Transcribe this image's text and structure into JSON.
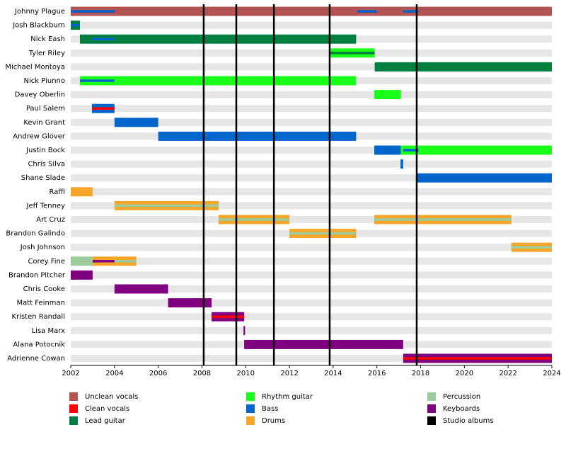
{
  "chart_data": {
    "type": "timeline",
    "xlim": [
      2002,
      2024
    ],
    "xticks": [
      2002,
      2004,
      2006,
      2008,
      2010,
      2012,
      2014,
      2016,
      2018,
      2020,
      2022,
      2024
    ],
    "legend": [
      {
        "name": "Unclean vocals",
        "color": "#b35454"
      },
      {
        "name": "Clean vocals",
        "color": "#ff0000"
      },
      {
        "name": "Lead guitar",
        "color": "#008040"
      },
      {
        "name": "Rhythm guitar",
        "color": "#1aff1a"
      },
      {
        "name": "Bass",
        "color": "#0066cc"
      },
      {
        "name": "Drums",
        "color": "#f5a52a"
      },
      {
        "name": "Percussion",
        "color": "#9ccc9c"
      },
      {
        "name": "Keyboards",
        "color": "#800080"
      },
      {
        "name": "Studio albums",
        "color": "#000000"
      }
    ],
    "albums": [
      2008.08,
      2009.57,
      2011.29,
      2013.84,
      2017.82
    ],
    "members": [
      {
        "name": "Johnny Plague",
        "bars": [
          {
            "role": "Unclean vocals",
            "start": 2002,
            "end": 2024
          },
          {
            "role": "Bass",
            "start": 2002,
            "end": 2004,
            "secondary": true
          },
          {
            "role": "Bass",
            "start": 2015.1,
            "end": 2016,
            "secondary": true
          },
          {
            "role": "Bass",
            "start": 2017.2,
            "end": 2017.9,
            "secondary": true
          }
        ]
      },
      {
        "name": "Josh Blackburn",
        "bars": [
          {
            "role": "Lead guitar",
            "start": 2002,
            "end": 2002.42
          },
          {
            "role": "Bass",
            "start": 2002,
            "end": 2002.42,
            "secondary": true
          }
        ]
      },
      {
        "name": "Nick Eash",
        "bars": [
          {
            "role": "Lead guitar",
            "start": 2002.42,
            "end": 2015.05
          },
          {
            "role": "Bass",
            "start": 2002.97,
            "end": 2004,
            "secondary": true
          }
        ]
      },
      {
        "name": "Tyler Riley",
        "bars": [
          {
            "role": "Rhythm guitar",
            "start": 2013.84,
            "end": 2015.9
          },
          {
            "role": "Lead guitar",
            "start": 2013.84,
            "end": 2015.9,
            "secondary": true
          }
        ]
      },
      {
        "name": "Michael Montoya",
        "bars": [
          {
            "role": "Lead guitar",
            "start": 2015.9,
            "end": 2024
          }
        ]
      },
      {
        "name": "Nick Piunno",
        "bars": [
          {
            "role": "Rhythm guitar",
            "start": 2002.42,
            "end": 2015.05
          },
          {
            "role": "Bass",
            "start": 2002.42,
            "end": 2004,
            "secondary": true
          }
        ]
      },
      {
        "name": "Davey Oberlin",
        "bars": [
          {
            "role": "Rhythm guitar",
            "start": 2015.88,
            "end": 2017.1
          }
        ]
      },
      {
        "name": "Paul Salem",
        "bars": [
          {
            "role": "Bass",
            "start": 2002.97,
            "end": 2004
          },
          {
            "role": "Clean vocals",
            "start": 2002.97,
            "end": 2004,
            "secondary": true
          }
        ]
      },
      {
        "name": "Kevin Grant",
        "bars": [
          {
            "role": "Bass",
            "start": 2004,
            "end": 2006
          }
        ]
      },
      {
        "name": "Andrew Glover",
        "bars": [
          {
            "role": "Bass",
            "start": 2006,
            "end": 2015.05
          }
        ]
      },
      {
        "name": "Justin Bock",
        "bars": [
          {
            "role": "Bass",
            "start": 2015.88,
            "end": 2017.1
          },
          {
            "role": "Rhythm guitar",
            "start": 2017.1,
            "end": 2024
          },
          {
            "role": "Bass",
            "start": 2017.2,
            "end": 2017.9,
            "secondary": true
          }
        ]
      },
      {
        "name": "Chris Silva",
        "bars": [
          {
            "role": "Bass",
            "start": 2017.08,
            "end": 2017.2
          }
        ]
      },
      {
        "name": "Shane Slade",
        "bars": [
          {
            "role": "Bass",
            "start": 2017.82,
            "end": 2024
          }
        ]
      },
      {
        "name": "Raffi",
        "bars": [
          {
            "role": "Drums",
            "start": 2002,
            "end": 2003
          }
        ]
      },
      {
        "name": "Jeff Tenney",
        "bars": [
          {
            "role": "Drums",
            "start": 2004,
            "end": 2008.76
          },
          {
            "role": "Percussion",
            "start": 2004,
            "end": 2008.76,
            "secondary": true
          }
        ]
      },
      {
        "name": "Art Cruz",
        "bars": [
          {
            "role": "Drums",
            "start": 2008.76,
            "end": 2012
          },
          {
            "role": "Percussion",
            "start": 2008.76,
            "end": 2012,
            "secondary": true
          },
          {
            "role": "Drums",
            "start": 2015.88,
            "end": 2022.15
          },
          {
            "role": "Percussion",
            "start": 2015.88,
            "end": 2022.15,
            "secondary": true
          }
        ]
      },
      {
        "name": "Brandon Galindo",
        "bars": [
          {
            "role": "Drums",
            "start": 2012,
            "end": 2015.05
          },
          {
            "role": "Percussion",
            "start": 2012,
            "end": 2015.05,
            "secondary": true
          }
        ]
      },
      {
        "name": "Josh Johnson",
        "bars": [
          {
            "role": "Drums",
            "start": 2022.15,
            "end": 2024
          },
          {
            "role": "Percussion",
            "start": 2022.15,
            "end": 2024,
            "secondary": true
          }
        ]
      },
      {
        "name": "Corey Fine",
        "bars": [
          {
            "role": "Percussion",
            "start": 2002,
            "end": 2003
          },
          {
            "role": "Drums",
            "start": 2003,
            "end": 2005
          },
          {
            "role": "Keyboards",
            "start": 2003,
            "end": 2004,
            "secondary": true
          },
          {
            "role": "Percussion",
            "start": 2004,
            "end": 2005,
            "secondary": true
          }
        ]
      },
      {
        "name": "Brandon Pitcher",
        "bars": [
          {
            "role": "Keyboards",
            "start": 2002,
            "end": 2003
          }
        ]
      },
      {
        "name": "Chris Cooke",
        "bars": [
          {
            "role": "Keyboards",
            "start": 2004,
            "end": 2006.45
          }
        ]
      },
      {
        "name": "Matt Feinman",
        "bars": [
          {
            "role": "Keyboards",
            "start": 2006.45,
            "end": 2008.44
          }
        ]
      },
      {
        "name": "Kristen Randall",
        "bars": [
          {
            "role": "Keyboards",
            "start": 2008.44,
            "end": 2009.93
          },
          {
            "role": "Clean vocals",
            "start": 2008.44,
            "end": 2009.93,
            "secondary": true
          }
        ]
      },
      {
        "name": "Lisa Marx",
        "bars": [
          {
            "role": "Keyboards",
            "start": 2009.9,
            "end": 2009.97
          }
        ]
      },
      {
        "name": "Alana Potocnik",
        "bars": [
          {
            "role": "Keyboards",
            "start": 2009.93,
            "end": 2017.2
          }
        ]
      },
      {
        "name": "Adrienne Cowan",
        "bars": [
          {
            "role": "Keyboards",
            "start": 2017.2,
            "end": 2024
          },
          {
            "role": "Clean vocals",
            "start": 2017.2,
            "end": 2024,
            "secondary": true
          }
        ]
      }
    ]
  }
}
